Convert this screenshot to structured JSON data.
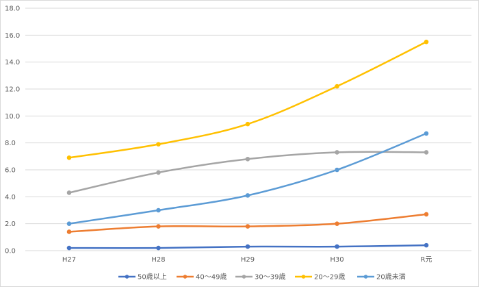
{
  "chart_data": {
    "type": "line",
    "title": "",
    "xlabel": "",
    "ylabel": "",
    "categories": [
      "H27",
      "H28",
      "H29",
      "H30",
      "R元"
    ],
    "ylim": [
      0,
      18
    ],
    "yticks": [
      "0.0",
      "2.0",
      "4.0",
      "6.0",
      "8.0",
      "10.0",
      "12.0",
      "14.0",
      "16.0",
      "18.0"
    ],
    "grid": "horizontal",
    "legend_position": "bottom",
    "series": [
      {
        "name": "50歳以上",
        "color": "#4472c4",
        "values": [
          0.2,
          0.2,
          0.3,
          0.3,
          0.4
        ]
      },
      {
        "name": "40～49歳",
        "color": "#ed7d31",
        "values": [
          1.4,
          1.8,
          1.8,
          2.0,
          2.7
        ]
      },
      {
        "name": "30～39歳",
        "color": "#a5a5a5",
        "values": [
          4.3,
          5.8,
          6.8,
          7.3,
          7.3
        ]
      },
      {
        "name": "20～29歳",
        "color": "#ffc000",
        "values": [
          6.9,
          7.9,
          9.4,
          12.2,
          15.5
        ]
      },
      {
        "name": "20歳未満",
        "color": "#5b9bd5",
        "values": [
          2.0,
          3.0,
          4.1,
          6.0,
          8.7
        ]
      }
    ]
  }
}
